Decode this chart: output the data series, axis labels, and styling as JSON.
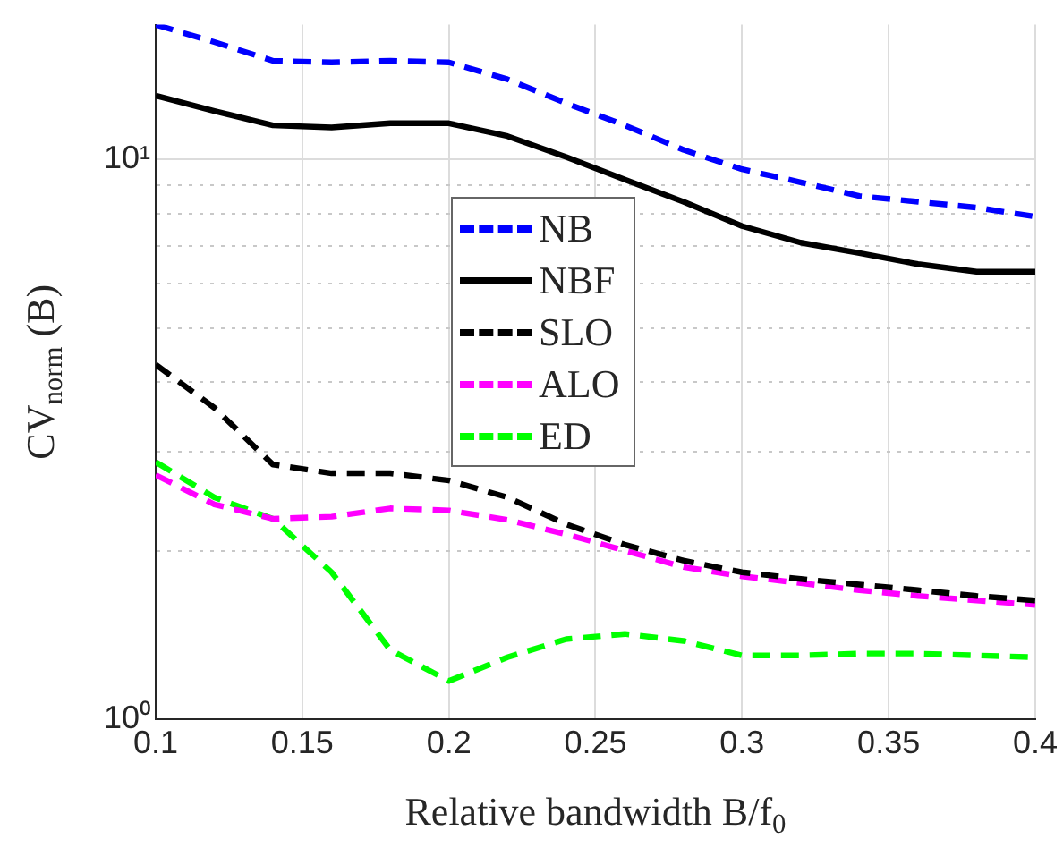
{
  "chart_data": {
    "type": "line",
    "xlabel": "Relative bandwidth B/f$_{0}$",
    "ylabel": "CV$_{norm}$ (B)",
    "x": [
      0.1,
      0.12,
      0.14,
      0.16,
      0.18,
      0.2,
      0.22,
      0.24,
      0.26,
      0.28,
      0.3,
      0.32,
      0.34,
      0.36,
      0.38,
      0.4
    ],
    "series": [
      {
        "name": "NB",
        "color": "#0000ff",
        "line_style": "dashed",
        "values": [
          17.4,
          16.2,
          15.0,
          14.9,
          15.0,
          14.9,
          13.9,
          12.6,
          11.5,
          10.4,
          9.6,
          9.1,
          8.6,
          8.4,
          8.2,
          7.9
        ]
      },
      {
        "name": "NBF",
        "color": "#000000",
        "line_style": "solid",
        "values": [
          13.0,
          12.2,
          11.5,
          11.4,
          11.6,
          11.6,
          11.0,
          10.1,
          9.2,
          8.4,
          7.6,
          7.1,
          6.8,
          6.5,
          6.3,
          6.3
        ]
      },
      {
        "name": "SLO",
        "color": "#000000",
        "line_style": "dashed",
        "values": [
          4.3,
          3.6,
          2.85,
          2.75,
          2.75,
          2.67,
          2.49,
          2.23,
          2.05,
          1.92,
          1.83,
          1.78,
          1.74,
          1.7,
          1.66,
          1.63
        ]
      },
      {
        "name": "ALO",
        "color": "#ff00ff",
        "line_style": "dashed",
        "values": [
          2.73,
          2.42,
          2.28,
          2.3,
          2.38,
          2.36,
          2.27,
          2.14,
          2.0,
          1.87,
          1.8,
          1.75,
          1.7,
          1.66,
          1.63,
          1.6
        ]
      },
      {
        "name": "ED",
        "color": "#00ff00",
        "line_style": "dashed",
        "values": [
          2.88,
          2.49,
          2.28,
          1.83,
          1.33,
          1.17,
          1.29,
          1.39,
          1.42,
          1.38,
          1.3,
          1.3,
          1.31,
          1.31,
          1.3,
          1.29
        ]
      }
    ],
    "xlim": [
      0.1,
      0.4
    ],
    "xticks": [
      0.1,
      0.15,
      0.2,
      0.25,
      0.3,
      0.35,
      0.4
    ],
    "ylim": [
      1,
      17.4
    ],
    "yticks": [
      {
        "value": 1,
        "label": "10⁰"
      },
      {
        "value": 2,
        "label": null
      },
      {
        "value": 3,
        "label": null
      },
      {
        "value": 4,
        "label": null
      },
      {
        "value": 5,
        "label": null
      },
      {
        "value": 6,
        "label": null
      },
      {
        "value": 7,
        "label": null
      },
      {
        "value": 8,
        "label": null
      },
      {
        "value": 9,
        "label": null
      },
      {
        "value": 10,
        "label": "10¹"
      }
    ],
    "log": "y",
    "grid": true,
    "legend": "center",
    "marker": "none"
  }
}
